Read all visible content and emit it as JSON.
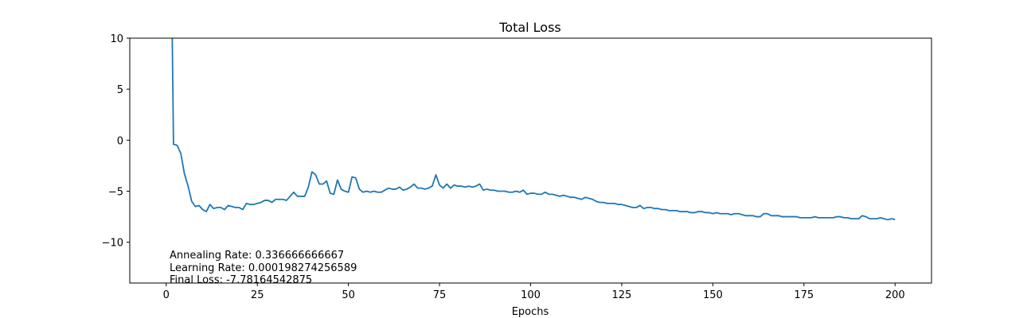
{
  "chart_data": {
    "type": "line",
    "title": "Total Loss",
    "x_label": "Epochs",
    "annotations": [
      "Annealing Rate: 0.336666666667",
      "Learning Rate: 0.000198274256589",
      "Final Loss: -7.78164542875"
    ],
    "color": "#1f77b4",
    "xlim": [
      -10,
      210
    ],
    "xticks": [
      0,
      25,
      50,
      75,
      100,
      125,
      150,
      175,
      200
    ],
    "ylim": [
      -14,
      10
    ],
    "yticks": [
      {
        "value": -10,
        "label": "−10"
      },
      {
        "value": -5,
        "label": "−5"
      },
      0,
      5,
      10
    ],
    "x": [
      1,
      2,
      3,
      4,
      5,
      6,
      7,
      8,
      9,
      10,
      11,
      12,
      13,
      14,
      15,
      16,
      17,
      18,
      19,
      20,
      21,
      22,
      23,
      24,
      25,
      26,
      27,
      28,
      29,
      30,
      31,
      32,
      33,
      34,
      35,
      36,
      37,
      38,
      39,
      40,
      41,
      42,
      43,
      44,
      45,
      46,
      47,
      48,
      49,
      50,
      51,
      52,
      53,
      54,
      55,
      56,
      57,
      58,
      59,
      60,
      61,
      62,
      63,
      64,
      65,
      66,
      67,
      68,
      69,
      70,
      71,
      72,
      73,
      74,
      75,
      76,
      77,
      78,
      79,
      80,
      81,
      82,
      83,
      84,
      85,
      86,
      87,
      88,
      89,
      90,
      91,
      92,
      93,
      94,
      95,
      96,
      97,
      98,
      99,
      100,
      101,
      102,
      103,
      104,
      105,
      106,
      107,
      108,
      109,
      110,
      111,
      112,
      113,
      114,
      115,
      116,
      117,
      118,
      119,
      120,
      121,
      122,
      123,
      124,
      125,
      126,
      127,
      128,
      129,
      130,
      131,
      132,
      133,
      134,
      135,
      136,
      137,
      138,
      139,
      140,
      141,
      142,
      143,
      144,
      145,
      146,
      147,
      148,
      149,
      150,
      151,
      152,
      153,
      154,
      155,
      156,
      157,
      158,
      159,
      160,
      161,
      162,
      163,
      164,
      165,
      166,
      167,
      168,
      169,
      170,
      171,
      172,
      173,
      174,
      175,
      176,
      177,
      178,
      179,
      180,
      181,
      182,
      183,
      184,
      185,
      186,
      187,
      188,
      189,
      190,
      191,
      192,
      193,
      194,
      195,
      196,
      197,
      198,
      199,
      200
    ],
    "values": [
      30,
      -0.4,
      -0.5,
      -1.3,
      -3.3,
      -4.5,
      -6.0,
      -6.5,
      -6.4,
      -6.8,
      -7.0,
      -6.3,
      -6.7,
      -6.6,
      -6.6,
      -6.8,
      -6.4,
      -6.5,
      -6.6,
      -6.6,
      -6.8,
      -6.2,
      -6.3,
      -6.3,
      -6.2,
      -6.1,
      -5.9,
      -5.9,
      -6.1,
      -5.8,
      -5.8,
      -5.8,
      -5.9,
      -5.5,
      -5.1,
      -5.5,
      -5.5,
      -5.5,
      -4.6,
      -3.1,
      -3.4,
      -4.3,
      -4.3,
      -4.0,
      -5.2,
      -5.3,
      -3.9,
      -4.8,
      -5.0,
      -5.1,
      -3.6,
      -3.7,
      -4.8,
      -5.1,
      -5.0,
      -5.1,
      -5.0,
      -5.1,
      -5.1,
      -4.9,
      -4.7,
      -4.8,
      -4.8,
      -4.6,
      -4.9,
      -4.8,
      -4.6,
      -4.3,
      -4.7,
      -4.7,
      -4.8,
      -4.7,
      -4.5,
      -3.4,
      -4.4,
      -4.7,
      -4.3,
      -4.7,
      -4.4,
      -4.5,
      -4.5,
      -4.6,
      -4.5,
      -4.6,
      -4.5,
      -4.3,
      -4.9,
      -4.8,
      -4.9,
      -4.9,
      -5.0,
      -5.0,
      -5.0,
      -5.1,
      -5.1,
      -5.0,
      -5.1,
      -4.9,
      -5.3,
      -5.2,
      -5.2,
      -5.3,
      -5.3,
      -5.1,
      -5.3,
      -5.3,
      -5.4,
      -5.5,
      -5.4,
      -5.5,
      -5.6,
      -5.6,
      -5.7,
      -5.8,
      -5.6,
      -5.7,
      -5.8,
      -6.0,
      -6.1,
      -6.1,
      -6.2,
      -6.2,
      -6.2,
      -6.3,
      -6.3,
      -6.4,
      -6.5,
      -6.6,
      -6.6,
      -6.4,
      -6.7,
      -6.6,
      -6.6,
      -6.7,
      -6.7,
      -6.8,
      -6.8,
      -6.9,
      -6.9,
      -6.9,
      -7.0,
      -7.0,
      -7.0,
      -7.1,
      -7.1,
      -7.0,
      -7.0,
      -7.1,
      -7.1,
      -7.2,
      -7.1,
      -7.2,
      -7.2,
      -7.2,
      -7.3,
      -7.2,
      -7.2,
      -7.3,
      -7.4,
      -7.4,
      -7.4,
      -7.5,
      -7.5,
      -7.2,
      -7.2,
      -7.4,
      -7.4,
      -7.4,
      -7.5,
      -7.5,
      -7.5,
      -7.5,
      -7.5,
      -7.6,
      -7.6,
      -7.6,
      -7.6,
      -7.5,
      -7.6,
      -7.6,
      -7.6,
      -7.6,
      -7.6,
      -7.5,
      -7.5,
      -7.6,
      -7.6,
      -7.7,
      -7.7,
      -7.7,
      -7.4,
      -7.5,
      -7.7,
      -7.7,
      -7.7,
      -7.6,
      -7.7,
      -7.8,
      -7.7,
      -7.78
    ]
  }
}
